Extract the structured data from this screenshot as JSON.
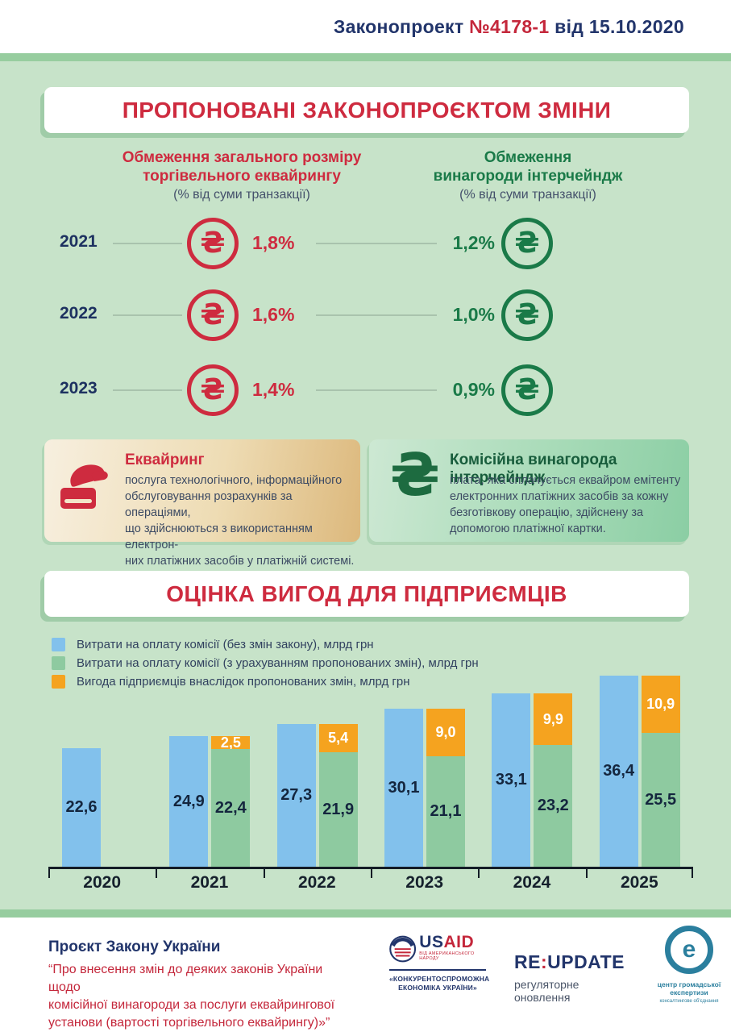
{
  "header": {
    "prefix": "Законопроект ",
    "number": "№4178-1",
    "suffix": " від 15.10.2020"
  },
  "section_changes": {
    "title": "ПРОПОНОВАНІ ЗАКОНОПРОЄКТОМ ЗМІНИ",
    "currency_symbol": "₴",
    "acquiring_header": {
      "line1": "Обмеження загального розміру",
      "line2": "торгівельного еквайрингу",
      "subtitle": "(% від суми транзакції)"
    },
    "interchange_header": {
      "line1": "Обмеження",
      "line2": "винагороди інтерчейндж",
      "subtitle": "(% від суми транзакції)"
    },
    "rows": [
      {
        "year": "2021",
        "acquiring_cap": "1,8%",
        "interchange_cap": "1,2%"
      },
      {
        "year": "2022",
        "acquiring_cap": "1,6%",
        "interchange_cap": "1,0%"
      },
      {
        "year": "2023",
        "acquiring_cap": "1,4%",
        "interchange_cap": "0,9%"
      }
    ]
  },
  "definitions": {
    "acquiring": {
      "title": "Еквайринг",
      "lines": [
        "послуга технологічного, інформаційного",
        "обслуговування розрахунків за операціями,",
        "що здійснюються з використанням електрон-",
        "них платіжних засобів у платіжній системі."
      ]
    },
    "interchange": {
      "title": "Комісійна винагорода інтерчейндж",
      "lines": [
        "плата, яка сплачується еквайром емітенту",
        "електронних платіжних засобів за кожну",
        "безготівкову операцію, здійснену за",
        "допомогою платіжної картки."
      ]
    }
  },
  "section_benefits": {
    "title": "ОЦІНКА ВИГОД ДЛЯ ПІДПРИЄМЦІВ"
  },
  "chart_data": {
    "type": "bar",
    "categories": [
      "2020",
      "2021",
      "2022",
      "2023",
      "2024",
      "2025"
    ],
    "series": [
      {
        "name": "Витрати на оплату комісії (без змін закону), млрд грн",
        "color": "#82c1ec",
        "values": [
          22.6,
          24.9,
          27.3,
          30.1,
          33.1,
          36.4
        ],
        "labels": [
          "22,6",
          "24,9",
          "27,3",
          "30,1",
          "33,1",
          "36,4"
        ]
      },
      {
        "name": "Витрати на оплату комісії (з урахуванням пропонованих змін), млрд грн",
        "color": "#8ecaa0",
        "values": [
          null,
          22.4,
          21.9,
          21.1,
          23.2,
          25.5
        ],
        "labels": [
          null,
          "22,4",
          "21,9",
          "21,1",
          "23,2",
          "25,5"
        ]
      },
      {
        "name": "Вигода підприємців внаслідок пропонованих змін, млрд грн",
        "color": "#f5a31f",
        "values": [
          null,
          2.5,
          5.4,
          9.0,
          9.9,
          10.9
        ],
        "labels": [
          null,
          "2,5",
          "5,4",
          "9,0",
          "9,9",
          "10,9"
        ]
      }
    ],
    "unit": "млрд грн",
    "ylim": [
      0,
      40
    ],
    "grid": false,
    "legend_position": "top-left",
    "stacking": "series 1 own bar; series 2 + series 3 stacked bar per year"
  },
  "footer": {
    "law_title": "Проєкт Закону України",
    "law_lines": [
      "“Про внесення змін до деяких законів України щодо",
      "комісійної винагороди за послуги еквайрингової",
      "установи (вартості торгівельного еквайрингу)»”"
    ],
    "usaid": {
      "wordmark_left": "US",
      "wordmark_right": "AID",
      "tagline": "ВІД АМЕРИКАНСЬКОГО НАРОДУ",
      "program_line1": "«КОНКУРЕНТОСПРОМОЖНА",
      "program_line2": "ЕКОНОМІКА УКРАЇНИ»"
    },
    "reupdate": {
      "part1": "RE",
      "colon": ":",
      "part2": "UPDATE",
      "subtitle": "регуляторне оновлення"
    },
    "cge": {
      "line1": "центр громадської",
      "line2": "експертизи",
      "line3": "консалтингове об'єднання"
    }
  },
  "colors": {
    "background_green": "#c7e3c9",
    "strip_green": "#97cd9f",
    "accent_red": "#ce2b3f",
    "navy": "#22356b",
    "dark_green": "#1a7a48",
    "bar_blue": "#82c1ec",
    "bar_green": "#8ecaa0",
    "bar_orange": "#f5a31f",
    "logo_teal": "#2b7f9e"
  }
}
